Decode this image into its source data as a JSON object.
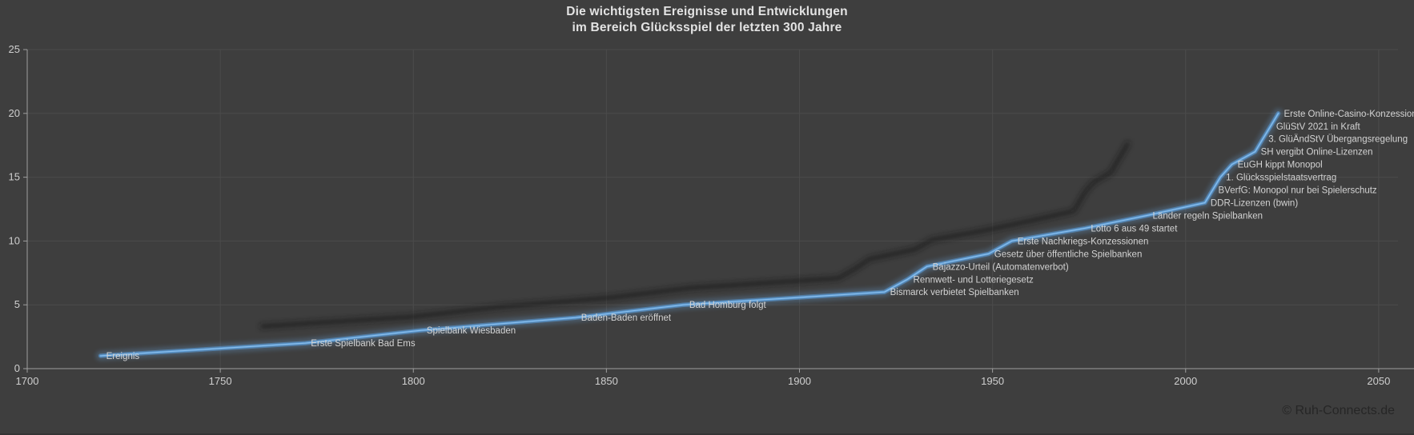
{
  "title": {
    "line1": "Die wichtigsten Ereignisse und Entwicklungen",
    "line2": "im Bereich Glücksspiel der letzten 300 Jahre"
  },
  "footer": {
    "copyright": "© Ruh-Connects.de"
  },
  "chart_data": {
    "type": "line",
    "title": "Die wichtigsten Ereignisse und Entwicklungen im Bereich Glücksspiel der letzten 300 Jahre",
    "xlabel": "",
    "ylabel": "",
    "xlim": [
      1700,
      2055
    ],
    "ylim": [
      0,
      25
    ],
    "x_ticks": [
      1700,
      1750,
      1800,
      1850,
      1900,
      1950,
      2000,
      2050
    ],
    "y_ticks": [
      0,
      5,
      10,
      15,
      20,
      25
    ],
    "grid": true,
    "legend": "none",
    "series": [
      {
        "name": "Ereignis",
        "points": [
          {
            "label": "Ereignis",
            "year": 1719,
            "value": 1
          },
          {
            "label": "Erste Spielbank Bad Ems",
            "year": 1772,
            "value": 2
          },
          {
            "label": "Spielbank Wiesbaden",
            "year": 1802,
            "value": 3
          },
          {
            "label": "Baden-Baden eröffnet",
            "year": 1842,
            "value": 4
          },
          {
            "label": "Bad Homburg folgt",
            "year": 1870,
            "value": 5
          },
          {
            "label": "Bismarck verbietet Spielbanken",
            "year": 1922,
            "value": 6
          },
          {
            "label": "Rennwett- und Lotteriegesetz",
            "year": 1928,
            "value": 7
          },
          {
            "label": "Bajazzo-Urteil (Automatenverbot)",
            "year": 1933,
            "value": 8
          },
          {
            "label": "Gesetz über öffentliche Spielbanken",
            "year": 1949,
            "value": 9
          },
          {
            "label": "Erste Nachkriegs-Konzessionen",
            "year": 1955,
            "value": 10
          },
          {
            "label": "Lotto 6 aus 49 startet",
            "year": 1974,
            "value": 11
          },
          {
            "label": "Länder regeln Spielbanken",
            "year": 1990,
            "value": 12
          },
          {
            "label": "DDR-Lizenzen (bwin)",
            "year": 2005,
            "value": 13
          },
          {
            "label": "BVerfG: Monopol nur bei Spielerschutz",
            "year": 2007,
            "value": 14
          },
          {
            "label": "1. Glücksspielstaatsvertrag",
            "year": 2009,
            "value": 15
          },
          {
            "label": "EuGH kippt Monopol",
            "year": 2012,
            "value": 16
          },
          {
            "label": "SH vergibt Online-Lizenzen",
            "year": 2018,
            "value": 17
          },
          {
            "label": "3. GlüÄndStV Übergangsregelung",
            "year": 2020,
            "value": 18
          },
          {
            "label": "GlüStV 2021 in Kraft",
            "year": 2022,
            "value": 19
          },
          {
            "label": "Erste Online-Casino-Konzessionen",
            "year": 2024,
            "value": 20
          }
        ]
      }
    ],
    "colors": {
      "background": "#3e3e3e",
      "gridline": "#4b4b4b",
      "axis": "#9f9f9f",
      "tick_label": "#cfcfcf",
      "data_label": "#d3d3d3",
      "title": "#e3e3e3",
      "line": "#5b9bd5",
      "line_core": "#8fc0ea",
      "line_glow": "#6aa3d8",
      "shadow": "#161616",
      "copyright": "#262626"
    }
  }
}
